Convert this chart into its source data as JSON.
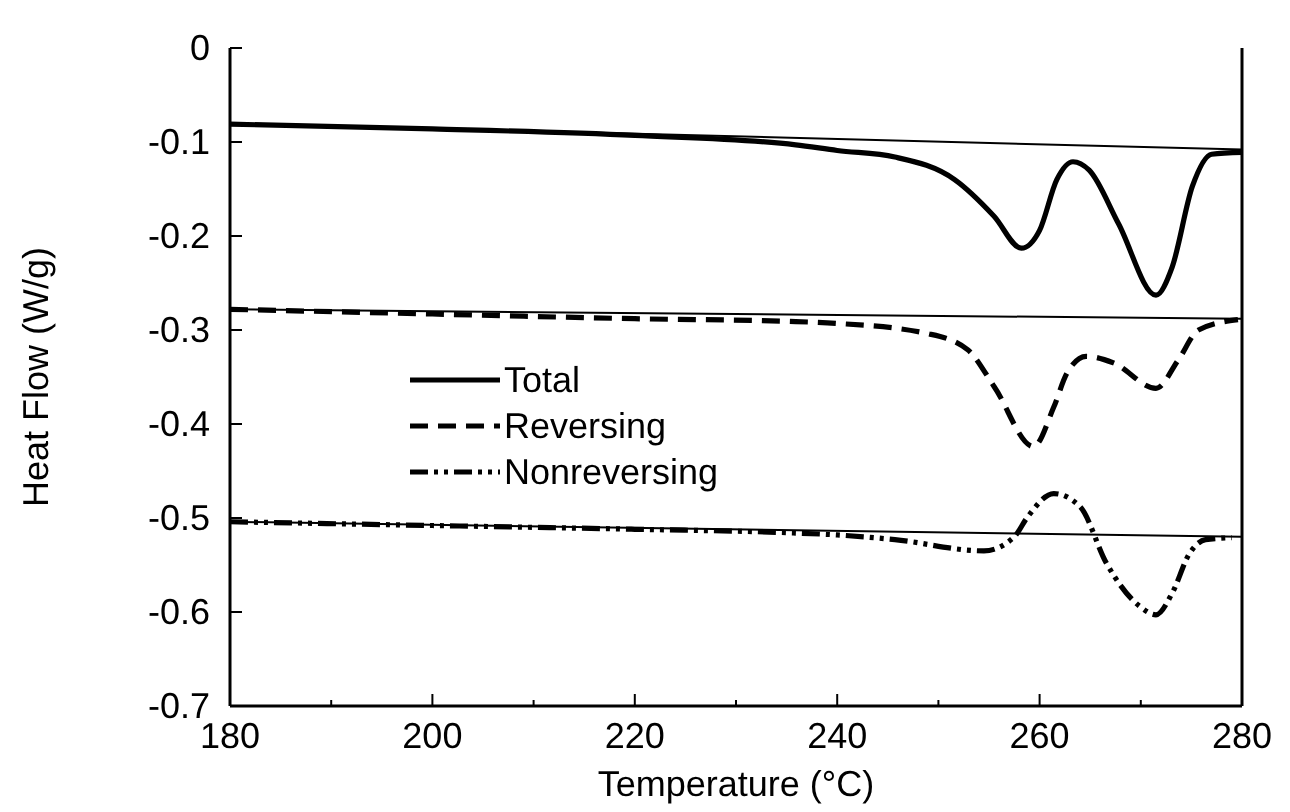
{
  "chart_data": {
    "type": "line",
    "xlabel": "Temperature (°C)",
    "ylabel": "Heat Flow (W/g)",
    "xlim": [
      180,
      280
    ],
    "xticks": [
      180,
      {
        "value": 190,
        "label": null
      },
      200,
      {
        "value": 210,
        "label": null
      },
      220,
      {
        "value": 230,
        "label": null
      },
      240,
      {
        "value": 250,
        "label": null
      },
      260,
      {
        "value": 270,
        "label": null
      },
      280
    ],
    "ylim": [
      -0.7,
      0
    ],
    "yticks": [
      0,
      -0.1,
      -0.2,
      -0.3,
      -0.4,
      -0.5,
      -0.6,
      -0.7
    ],
    "legend": "left",
    "grid": false,
    "series": [
      {
        "name": "Total",
        "color": "#000000",
        "line_style": "solid",
        "x": [
          180,
          200,
          220,
          235.9,
          240,
          245.7,
          251.6,
          255.5,
          258.2,
          260,
          261.7,
          263.3,
          264.9,
          267.8,
          271.5,
          273.1,
          275.1,
          277,
          280
        ],
        "values": [
          -0.081,
          -0.086,
          -0.093,
          -0.103,
          -0.109,
          -0.116,
          -0.14,
          -0.179,
          -0.213,
          -0.194,
          -0.14,
          -0.121,
          -0.13,
          -0.187,
          -0.263,
          -0.233,
          -0.147,
          -0.113,
          -0.111
        ]
      },
      {
        "name": "Reversing",
        "color": "#000000",
        "line_style": "dashed",
        "x": [
          180,
          200,
          220,
          235.9,
          240,
          249,
          252.9,
          255.5,
          259.4,
          261.4,
          262.7,
          264.6,
          267.3,
          271.5,
          273.7,
          275.7,
          279.6
        ],
        "values": [
          -0.278,
          -0.283,
          -0.288,
          -0.291,
          -0.293,
          -0.304,
          -0.321,
          -0.36,
          -0.424,
          -0.382,
          -0.346,
          -0.328,
          -0.335,
          -0.362,
          -0.332,
          -0.3,
          -0.289
        ]
      },
      {
        "name": "Nonreversing",
        "color": "#000000",
        "line_style": "dotted",
        "x": [
          180,
          200,
          220,
          235.9,
          240,
          245.7,
          254.5,
          257.5,
          258.8,
          261.4,
          264,
          266.6,
          269.9,
          271.5,
          273.1,
          274.8,
          276.4,
          279
        ],
        "values": [
          -0.504,
          -0.508,
          -0.512,
          -0.516,
          -0.518,
          -0.523,
          -0.535,
          -0.52,
          -0.499,
          -0.474,
          -0.488,
          -0.548,
          -0.594,
          -0.603,
          -0.58,
          -0.538,
          -0.523,
          -0.521
        ]
      },
      {
        "color": "#000000",
        "line_style": "solid",
        "x": [
          180,
          280
        ],
        "values": [
          -0.08,
          -0.108
        ]
      },
      {
        "color": "#000000",
        "line_style": "solid",
        "x": [
          180,
          280
        ],
        "values": [
          -0.278,
          -0.288
        ]
      },
      {
        "color": "#000000",
        "line_style": "solid",
        "x": [
          180,
          280
        ],
        "values": [
          -0.504,
          -0.52
        ]
      }
    ]
  }
}
